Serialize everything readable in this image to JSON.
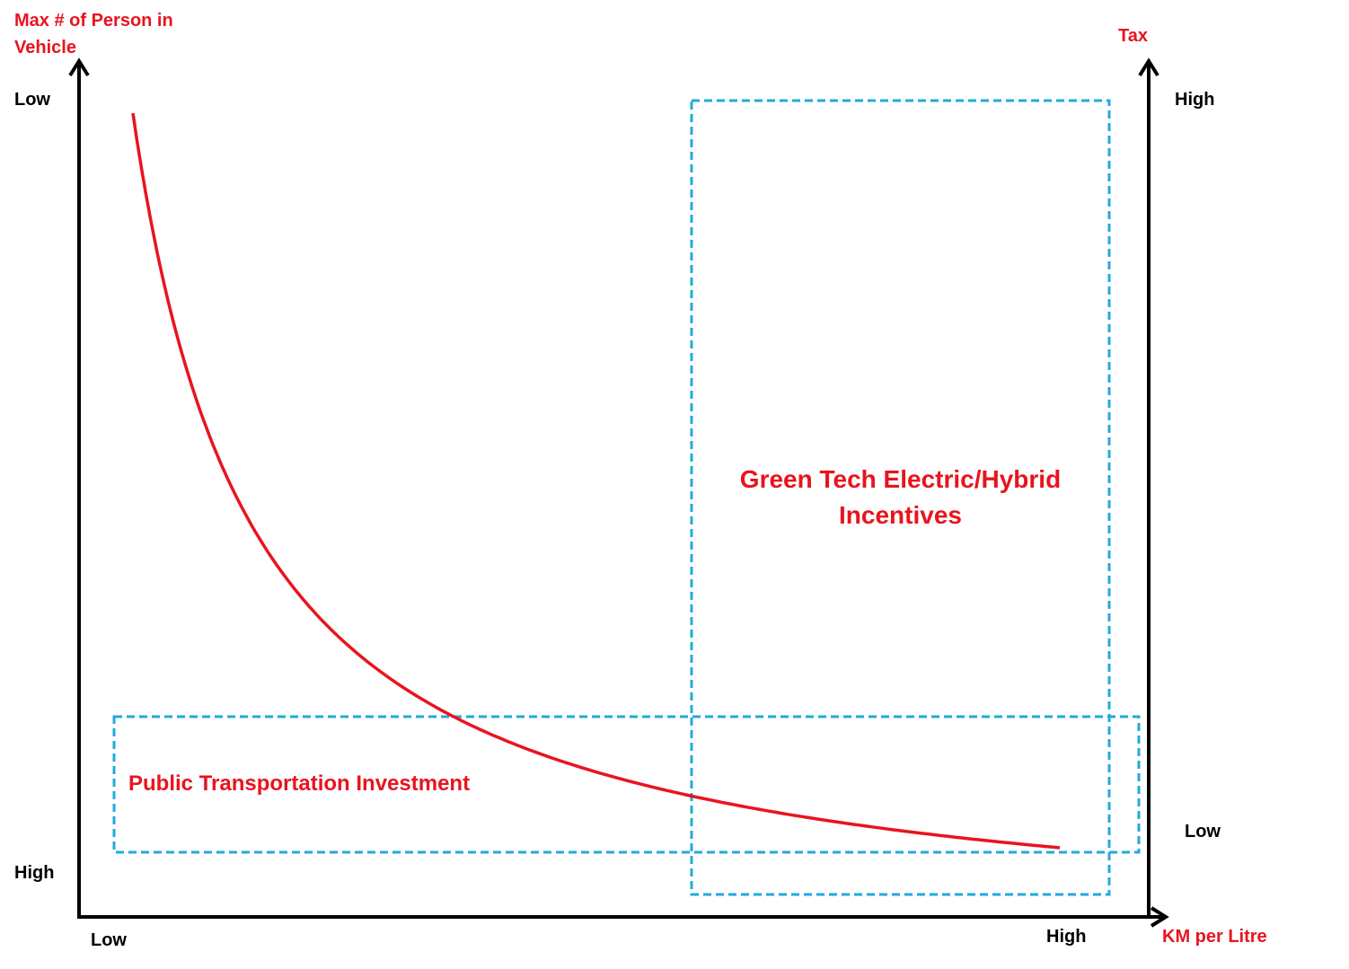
{
  "left_axis": {
    "title": "Max # of Person in Vehicle",
    "top_label": "Low",
    "bottom_label": "High"
  },
  "right_axis": {
    "title": "Tax",
    "top_label": "High",
    "bottom_label": "Low"
  },
  "x_axis": {
    "title": "KM per Litre",
    "left_label": "Low",
    "right_label": "High"
  },
  "regions": {
    "green_tech": {
      "line1": "Green Tech Electric/Hybrid",
      "line2": "Incentives"
    },
    "public_transport": {
      "label": "Public Transportation Investment"
    }
  },
  "colors": {
    "curve": "#e8141e",
    "region_border": "#22aadd",
    "axis": "#000000",
    "title_text": "#e8141e"
  }
}
